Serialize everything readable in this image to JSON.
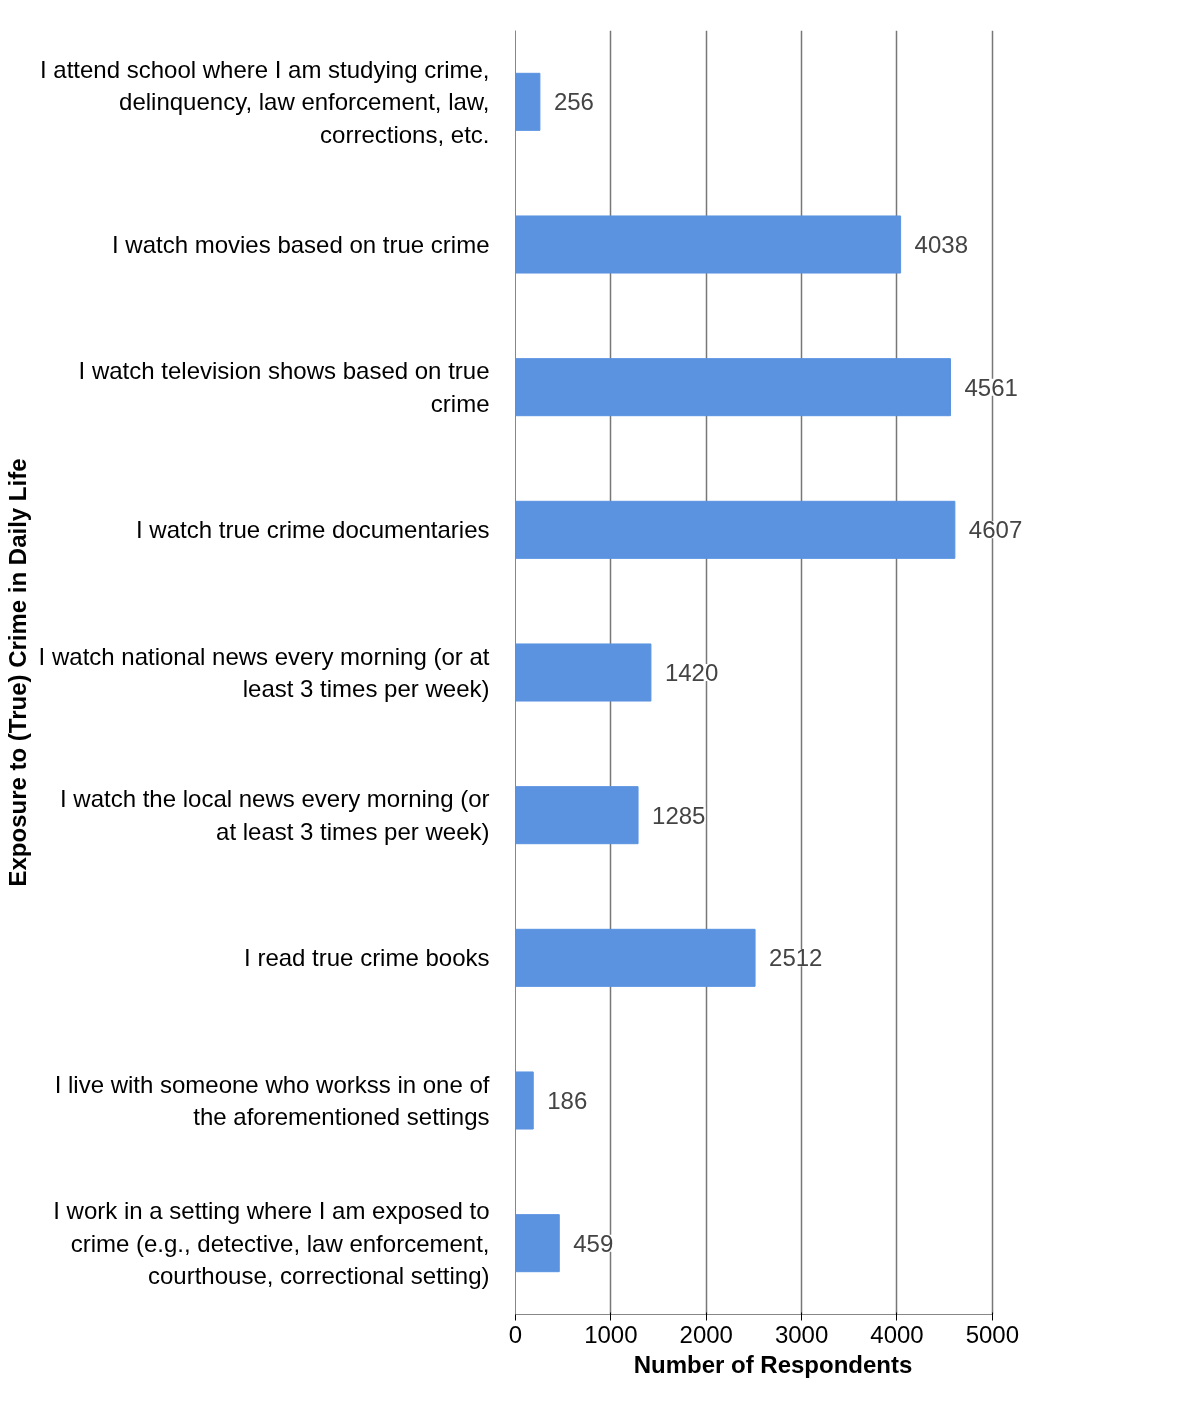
{
  "chart_data": {
    "type": "bar",
    "orientation": "horizontal",
    "xlabel": "Number of Respondents",
    "ylabel": "Exposure to (True) Crime in Daily Life",
    "categories": [
      "I attend school where I am studying crime, delinquency, law enforcement, law, corrections, etc.",
      "I watch movies based on true crime",
      "I watch television shows based on true crime",
      "I watch true crime documentaries",
      "I watch national news every morning (or at least 3 times per week)",
      "I watch the local news every morning (or at least 3 times per week)",
      "I read true crime books",
      "I live with someone who workss in one of the aforementioned settings",
      "I work in a setting where I am exposed to crime (e.g., detective, law enforcement, courthouse, correctional setting)"
    ],
    "values": [
      256,
      4038,
      4561,
      4607,
      1420,
      1285,
      2512,
      186,
      459
    ],
    "color": "#5b93e0",
    "xlim": [
      0,
      5000
    ],
    "xticks": [
      0,
      1000,
      2000,
      3000,
      4000,
      5000
    ],
    "grid": "x",
    "data_labels": true
  }
}
